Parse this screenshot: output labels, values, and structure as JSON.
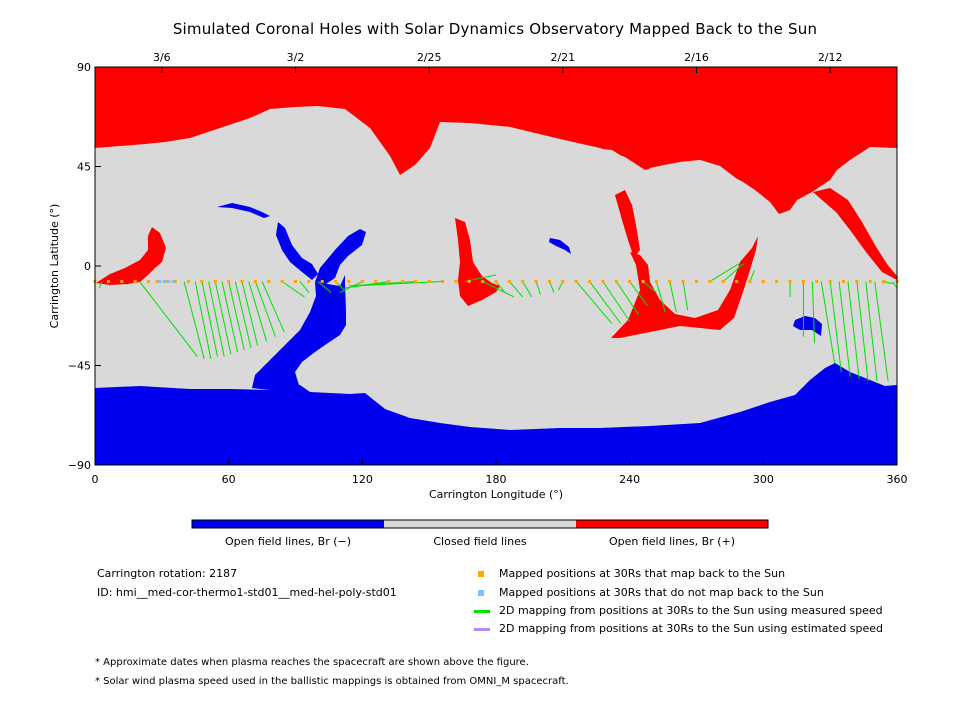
{
  "title": "Simulated Coronal Holes with Solar Dynamics Observatory Mapped Back to the Sun",
  "colors": {
    "open_neg": "#0000ee",
    "closed": "#d9d9d9",
    "open_pos": "#ff0000",
    "mapped_ok": "#ffa500",
    "mapped_no": "#7fbfff",
    "measured_speed": "#00e000",
    "estimated_speed": "#b887f0"
  },
  "chart_data": {
    "type": "heatmap",
    "title": "Simulated Coronal Holes with Solar Dynamics Observatory Mapped Back to the Sun",
    "xlabel": "Carrington Longitude (°)",
    "ylabel": "Carrington Latitude (°)",
    "xlim": [
      0,
      360
    ],
    "ylim": [
      -90,
      90
    ],
    "x_ticks": [
      "0",
      "60",
      "120",
      "180",
      "240",
      "300",
      "360"
    ],
    "y_ticks": [
      "90",
      "45",
      "0",
      "−45",
      "−90"
    ],
    "top_dates": [
      {
        "label": "3/6",
        "lon": 30
      },
      {
        "label": "3/2",
        "lon": 90
      },
      {
        "label": "2/25",
        "lon": 150
      },
      {
        "label": "2/21",
        "lon": 210
      },
      {
        "label": "2/16",
        "lon": 270
      },
      {
        "label": "2/12",
        "lon": 330
      }
    ],
    "regions": [
      {
        "name": "Open field lines, Br (−)",
        "polarity": "negative"
      },
      {
        "name": "Closed field lines",
        "polarity": "closed"
      },
      {
        "name": "Open field lines, Br (+)",
        "polarity": "positive"
      }
    ],
    "mapped_latitude_at_30Rs": -7,
    "mapped_points_lon": [
      0,
      6,
      12,
      18,
      24,
      28,
      32,
      36,
      42,
      48,
      54,
      60,
      66,
      72,
      78,
      84,
      90,
      96,
      102,
      108,
      114,
      120,
      126,
      132,
      138,
      144,
      150,
      156,
      162,
      168,
      174,
      180,
      186,
      192,
      198,
      204,
      210,
      216,
      222,
      228,
      234,
      240,
      246,
      252,
      258,
      264,
      270,
      276,
      282,
      288,
      294,
      300,
      306,
      312,
      318,
      324,
      330,
      336,
      342,
      348,
      354,
      360
    ],
    "unmapped_points_lon": [
      29,
      31,
      33,
      35
    ],
    "mapping_lines": [
      {
        "from_lon": 3,
        "to_lon": 2,
        "to_lat": -10
      },
      {
        "from_lon": 20,
        "to_lon": 46,
        "to_lat": -41
      },
      {
        "from_lon": 40,
        "to_lon": 49,
        "to_lat": -42
      },
      {
        "from_lon": 45,
        "to_lon": 52,
        "to_lat": -42
      },
      {
        "from_lon": 48,
        "to_lon": 55,
        "to_lat": -41
      },
      {
        "from_lon": 51,
        "to_lon": 58,
        "to_lat": -41
      },
      {
        "from_lon": 54,
        "to_lon": 61,
        "to_lat": -40
      },
      {
        "from_lon": 57,
        "to_lon": 64,
        "to_lat": -39
      },
      {
        "from_lon": 60,
        "to_lon": 67,
        "to_lat": -38
      },
      {
        "from_lon": 63,
        "to_lon": 70,
        "to_lat": -37
      },
      {
        "from_lon": 66,
        "to_lon": 73,
        "to_lat": -36
      },
      {
        "from_lon": 69,
        "to_lon": 77,
        "to_lat": -34
      },
      {
        "from_lon": 72,
        "to_lon": 81,
        "to_lat": -32
      },
      {
        "from_lon": 75,
        "to_lon": 85,
        "to_lat": -30
      },
      {
        "from_lon": 84,
        "to_lon": 94,
        "to_lat": -14
      },
      {
        "from_lon": 92,
        "to_lon": 96,
        "to_lat": -12
      },
      {
        "from_lon": 100,
        "to_lon": 106,
        "to_lat": -12
      },
      {
        "from_lon": 108,
        "to_lon": 112,
        "to_lat": -11
      },
      {
        "from_lon": 120,
        "to_lon": 110,
        "to_lat": -12
      },
      {
        "from_lon": 132,
        "to_lon": 112,
        "to_lat": -10
      },
      {
        "from_lon": 144,
        "to_lon": 114,
        "to_lat": -9
      },
      {
        "from_lon": 156,
        "to_lon": 116,
        "to_lat": -9
      },
      {
        "from_lon": 166,
        "to_lon": 180,
        "to_lat": -4
      },
      {
        "from_lon": 174,
        "to_lon": 188,
        "to_lat": -14
      },
      {
        "from_lon": 180,
        "to_lon": 184,
        "to_lat": -12
      },
      {
        "from_lon": 186,
        "to_lon": 192,
        "to_lat": -14
      },
      {
        "from_lon": 192,
        "to_lon": 196,
        "to_lat": -14
      },
      {
        "from_lon": 198,
        "to_lon": 200,
        "to_lat": -13
      },
      {
        "from_lon": 204,
        "to_lon": 206,
        "to_lat": -12
      },
      {
        "from_lon": 210,
        "to_lon": 208,
        "to_lat": -11
      },
      {
        "from_lon": 216,
        "to_lon": 232,
        "to_lat": -26
      },
      {
        "from_lon": 222,
        "to_lon": 236,
        "to_lat": -26
      },
      {
        "from_lon": 228,
        "to_lon": 240,
        "to_lat": -25
      },
      {
        "from_lon": 234,
        "to_lon": 244,
        "to_lat": -22
      },
      {
        "from_lon": 240,
        "to_lon": 248,
        "to_lat": -18
      },
      {
        "from_lon": 246,
        "to_lon": 252,
        "to_lat": -12
      },
      {
        "from_lon": 252,
        "to_lon": 256,
        "to_lat": -21
      },
      {
        "from_lon": 258,
        "to_lon": 261,
        "to_lat": -21
      },
      {
        "from_lon": 264,
        "to_lon": 266,
        "to_lat": -20
      },
      {
        "from_lon": 276,
        "to_lon": 289,
        "to_lat": 1
      },
      {
        "from_lon": 282,
        "to_lon": 291,
        "to_lat": 1
      },
      {
        "from_lon": 294,
        "to_lon": 296,
        "to_lat": -2
      },
      {
        "from_lon": 312,
        "to_lon": 312,
        "to_lat": -14
      },
      {
        "from_lon": 318,
        "to_lon": 318,
        "to_lat": -32
      },
      {
        "from_lon": 322,
        "to_lon": 323,
        "to_lat": -35
      },
      {
        "from_lon": 326,
        "to_lon": 332,
        "to_lat": -44
      },
      {
        "from_lon": 330,
        "to_lon": 335,
        "to_lat": -48
      },
      {
        "from_lon": 334,
        "to_lon": 339,
        "to_lat": -50
      },
      {
        "from_lon": 338,
        "to_lon": 343,
        "to_lat": -51
      },
      {
        "from_lon": 342,
        "to_lon": 347,
        "to_lat": -52
      },
      {
        "from_lon": 346,
        "to_lon": 351,
        "to_lat": -52
      },
      {
        "from_lon": 350,
        "to_lon": 356,
        "to_lat": -52
      },
      {
        "from_lon": 354,
        "to_lon": 358,
        "to_lat": -8
      },
      {
        "from_lon": 358,
        "to_lon": 360,
        "to_lat": -10
      }
    ]
  },
  "colorbar": {
    "labels": [
      "Open field lines, Br (−)",
      "Closed field lines",
      "Open field lines, Br (+)"
    ]
  },
  "info": {
    "rotation": "Carrington rotation: 2187",
    "id": "ID: hmi__med-cor-thermo1-std01__med-hel-poly-std01"
  },
  "legend": [
    {
      "label": "Mapped positions at 30Rs that map back to the Sun",
      "kind": "mapped_ok"
    },
    {
      "label": "Mapped positions at 30Rs that do not map back to the Sun",
      "kind": "mapped_no"
    },
    {
      "label": "2D mapping from positions at 30Rs to the Sun using measured speed",
      "kind": "measured_speed"
    },
    {
      "label": "2D mapping from positions at 30Rs to the Sun using estimated speed",
      "kind": "estimated_speed"
    }
  ],
  "notes": [
    "* Approximate dates when plasma reaches the spacecraft are shown above the figure.",
    "* Solar wind plasma speed used in the ballistic mappings is obtained from OMNI_M spacecraft."
  ]
}
